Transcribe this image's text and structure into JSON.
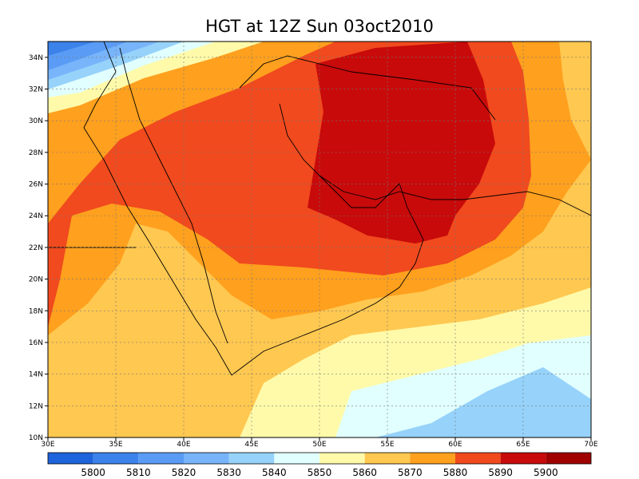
{
  "title": "HGT at 12Z Sun 03oct2010",
  "lat_labels": [
    "10N",
    "12N",
    "14N",
    "16N",
    "18N",
    "20N",
    "22N",
    "24N",
    "26N",
    "28N",
    "30N",
    "32N",
    "34N"
  ],
  "lon_labels": [
    "30E",
    "35E",
    "40E",
    "45E",
    "50E",
    "55E",
    "60E",
    "65E",
    "70E"
  ],
  "colorbar": {
    "colors": [
      "#1e64dc",
      "#3c82eb",
      "#5a9cf5",
      "#78b4fa",
      "#96d2fa",
      "#e1ffff",
      "#fffaaa",
      "#ffc850",
      "#ffa01e",
      "#f04a1e",
      "#c80a0a",
      "#a00000"
    ],
    "labels": [
      5800,
      5810,
      5820,
      5830,
      5840,
      5850,
      5860,
      5870,
      5880,
      5890,
      5900
    ]
  }
}
